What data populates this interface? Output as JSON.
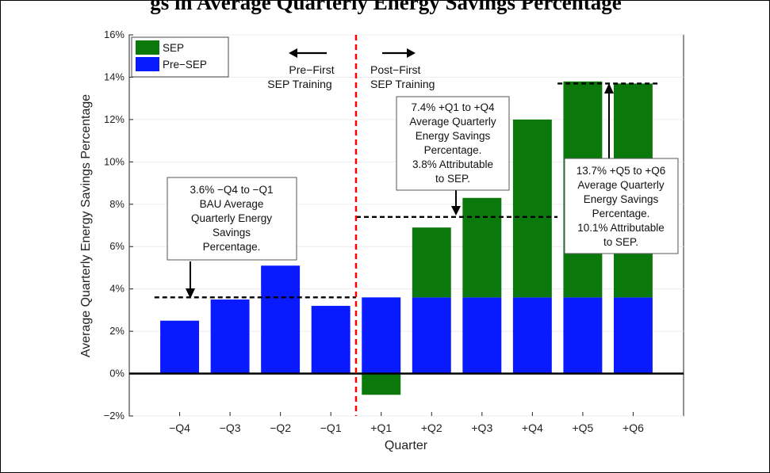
{
  "page_title": "gs in Average Quarterly Energy Savings Percentage",
  "chart_data": {
    "type": "bar",
    "stacked": true,
    "categories": [
      "−Q4",
      "−Q3",
      "−Q2",
      "−Q1",
      "+Q1",
      "+Q2",
      "+Q3",
      "+Q4",
      "+Q5",
      "+Q6"
    ],
    "series": [
      {
        "name": "Pre−SEP",
        "color": "#0a1aff",
        "values": [
          2.5,
          3.5,
          5.1,
          3.2,
          3.6,
          3.6,
          3.6,
          3.6,
          3.6,
          3.6
        ]
      },
      {
        "name": "SEP",
        "color": "#0b780b",
        "values": [
          0,
          0,
          0,
          0,
          -1.0,
          3.3,
          4.7,
          8.4,
          10.2,
          10.1
        ]
      }
    ],
    "xlabel": "Quarter",
    "ylabel": "Average Quarterly Energy Savings Percentage",
    "ylim": [
      -2,
      16
    ],
    "yticks": [
      -2,
      0,
      2,
      4,
      6,
      8,
      10,
      12,
      14,
      16
    ],
    "ytick_labels": [
      "−2%",
      "0%",
      "2%",
      "4%",
      "6%",
      "8%",
      "10%",
      "12%",
      "14%",
      "16%"
    ],
    "legend_position": "top-left",
    "reference_lines": [
      {
        "y": 3.6,
        "from_category": 0,
        "to_category": 3,
        "style": "dashed"
      },
      {
        "y": 7.4,
        "from_category": 4,
        "to_category": 7,
        "style": "dashed"
      },
      {
        "y": 13.7,
        "from_category": 8,
        "to_category": 9,
        "style": "dashed"
      }
    ],
    "training_divider": {
      "between_categories": [
        3,
        4
      ],
      "color": "#ff0000",
      "style": "dashed"
    },
    "region_labels": {
      "left": [
        "Pre−First",
        "SEP Training"
      ],
      "right": [
        "Post−First",
        "SEP Training"
      ]
    },
    "annotations": [
      {
        "lines": [
          "3.6% −Q4 to −Q1",
          "BAU Average",
          "Quarterly Energy",
          "Savings",
          "Percentage."
        ]
      },
      {
        "lines": [
          "7.4% +Q1 to +Q4",
          "Average Quarterly",
          "Energy Savings",
          "Percentage.",
          "3.8% Attributable",
          "to SEP."
        ]
      },
      {
        "lines": [
          "13.7% +Q5 to +Q6",
          "Average Quarterly",
          "Energy Savings",
          "Percentage.",
          "10.1% Attributable",
          "to SEP."
        ]
      }
    ]
  }
}
